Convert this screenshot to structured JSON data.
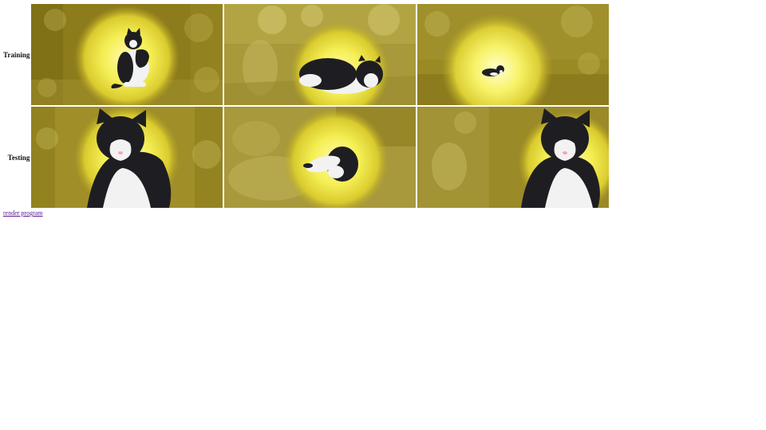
{
  "rows": [
    {
      "label": "Training"
    },
    {
      "label": "Testing"
    }
  ],
  "link": {
    "label": "render program"
  },
  "colors": {
    "background_olive": "#8b7a18",
    "glow_yellow": "#f7f36a",
    "cat_black": "#1e1e22",
    "cat_white": "#f2f2f2",
    "link": "#551a8b"
  }
}
